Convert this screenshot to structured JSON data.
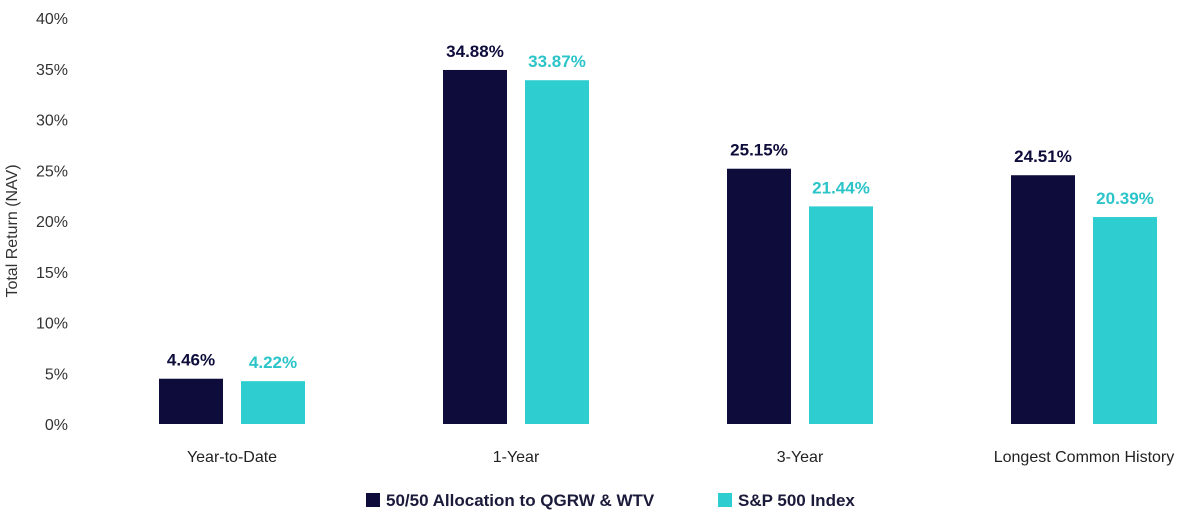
{
  "chart_data": {
    "type": "bar",
    "title": "",
    "xlabel": "",
    "ylabel": "Total Return (NAV)",
    "ylim": [
      0,
      40
    ],
    "yticks": [
      0,
      5,
      10,
      15,
      20,
      25,
      30,
      35,
      40
    ],
    "ytick_labels": [
      "0%",
      "5%",
      "10%",
      "15%",
      "20%",
      "25%",
      "30%",
      "35%",
      "40%"
    ],
    "categories": [
      "Year-to-Date",
      "1-Year",
      "3-Year",
      "Longest Common History"
    ],
    "series": [
      {
        "name": "50/50 Allocation to QGRW & WTV",
        "color": "#0d0c3a",
        "values": [
          4.46,
          34.88,
          25.15,
          24.51
        ],
        "labels": [
          "4.46%",
          "34.88%",
          "25.15%",
          "24.51%"
        ]
      },
      {
        "name": "S&P 500 Index",
        "color": "#2ecdd0",
        "values": [
          4.22,
          33.87,
          21.44,
          20.39
        ],
        "labels": [
          "4.22%",
          "33.87%",
          "21.44%",
          "20.39%"
        ]
      }
    ],
    "legend_position": "bottom-center",
    "grid": false
  }
}
